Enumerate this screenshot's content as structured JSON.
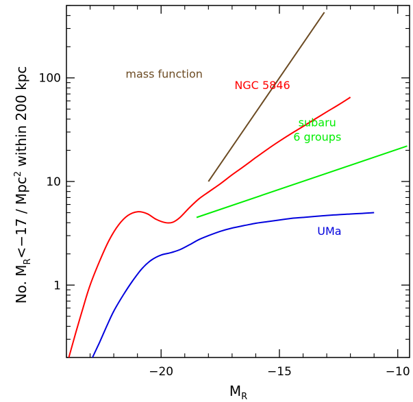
{
  "chart_data": {
    "type": "line",
    "title": "",
    "xlabel": {
      "main": "M",
      "sub": "R"
    },
    "ylabel": {
      "p1": "No. M",
      "sub": "R",
      "p2": "<−17 / Mpc",
      "sup": "2",
      "p3": " within 200 kpc"
    },
    "xlim": [
      -24,
      -9.5
    ],
    "ylim": [
      0.2,
      500
    ],
    "yscale": "log",
    "grid": false,
    "xticks": [
      {
        "value": -20,
        "label": "−20"
      },
      {
        "value": -15,
        "label": "−15"
      },
      {
        "value": -10,
        "label": "−10"
      }
    ],
    "yticks": [
      {
        "value": 1,
        "label": "1"
      },
      {
        "value": 10,
        "label": "10"
      },
      {
        "value": 100,
        "label": "100"
      }
    ],
    "series": [
      {
        "name": "mass function",
        "color": "#6b4a22",
        "label_pos": {
          "x": -21.5,
          "y": 100
        },
        "x": [
          -18.0,
          -13.1
        ],
        "y": [
          10.0,
          430.0
        ]
      },
      {
        "name": "NGC 5846",
        "color": "#ff0000",
        "label_pos": {
          "x": -16.9,
          "y": 78
        },
        "x": [
          -23.9,
          -23.6,
          -23.3,
          -23.0,
          -22.6,
          -22.2,
          -21.8,
          -21.4,
          -21.0,
          -20.6,
          -20.2,
          -19.8,
          -19.5,
          -19.2,
          -18.8,
          -18.4,
          -18.0,
          -17.5,
          -17.0,
          -16.5,
          -16.0,
          -15.5,
          -15.0,
          -14.5,
          -14.0,
          -13.5,
          -13.0,
          -12.5,
          -12.0
        ],
        "y": [
          0.2,
          0.35,
          0.6,
          1.0,
          1.7,
          2.7,
          3.8,
          4.7,
          5.1,
          4.9,
          4.3,
          4.0,
          4.05,
          4.5,
          5.6,
          6.8,
          7.9,
          9.5,
          11.6,
          14.0,
          17.0,
          20.5,
          24.5,
          29.0,
          34.0,
          40.0,
          47.0,
          55.0,
          65.0
        ]
      },
      {
        "name": "subaru\n6 groups",
        "color": "#00ee00",
        "label_pos": {
          "x": -13.4,
          "y": 34
        },
        "x": [
          -18.5,
          -9.6
        ],
        "y": [
          4.5,
          22.0
        ]
      },
      {
        "name": "UMa",
        "color": "#0000dd",
        "label_pos": {
          "x": -13.4,
          "y": 3.05
        },
        "x": [
          -22.9,
          -22.6,
          -22.3,
          -22.0,
          -21.6,
          -21.2,
          -20.8,
          -20.4,
          -20.0,
          -19.6,
          -19.2,
          -18.8,
          -18.4,
          -18.0,
          -17.5,
          -17.0,
          -16.5,
          -16.0,
          -15.5,
          -15.0,
          -14.5,
          -14.0,
          -13.5,
          -13.0,
          -12.5,
          -12.0,
          -11.5,
          -11.0
        ],
        "y": [
          0.2,
          0.28,
          0.4,
          0.56,
          0.8,
          1.1,
          1.45,
          1.75,
          1.95,
          2.05,
          2.2,
          2.45,
          2.75,
          3.0,
          3.3,
          3.55,
          3.75,
          3.95,
          4.1,
          4.25,
          4.4,
          4.5,
          4.6,
          4.7,
          4.78,
          4.85,
          4.92,
          5.0
        ]
      }
    ]
  }
}
